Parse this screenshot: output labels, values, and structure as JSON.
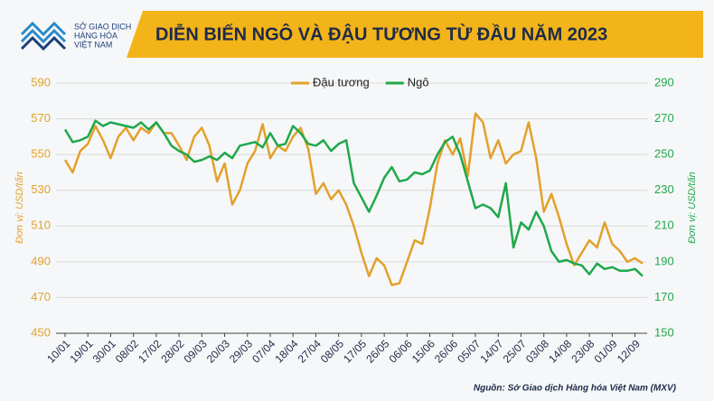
{
  "logo": {
    "lines": [
      "SỞ GIAO DỊCH",
      "HÀNG HÓA",
      "VIỆT NAM"
    ]
  },
  "chart_data": {
    "type": "line",
    "title": "DIỄN BIẾN NGÔ VÀ ĐẬU TƯƠNG TỪ ĐẦU NĂM 2023",
    "y_label": "Đơn vị: USD/tấn",
    "y2_label": "Đơn vị: USD/tấn",
    "source": "Nguồn: Sở Giao dịch Hàng hóa Việt Nam (MXV)",
    "categories": [
      "10/01",
      null,
      null,
      "19/01",
      null,
      null,
      "30/01",
      null,
      null,
      "08/02",
      null,
      null,
      "17/02",
      null,
      null,
      "28/02",
      null,
      null,
      "09/03",
      null,
      null,
      "20/03",
      null,
      null,
      "29/03",
      null,
      null,
      "07/04",
      null,
      null,
      "18/04",
      null,
      null,
      "27/04",
      null,
      null,
      "08/05",
      null,
      null,
      "17/05",
      null,
      null,
      "26/05",
      null,
      null,
      "06/06",
      null,
      null,
      "15/06",
      null,
      null,
      "26/06",
      null,
      null,
      "05/07",
      null,
      null,
      "14/07",
      null,
      null,
      "25/07",
      null,
      null,
      "03/08",
      null,
      null,
      "14/08",
      null,
      null,
      "23/08",
      null,
      null,
      "01/09",
      null,
      null,
      "12/09",
      null
    ],
    "series": [
      {
        "name": "Đậu tương",
        "color": "#e2a12b",
        "axis": "y",
        "values": [
          547,
          540,
          552,
          556,
          566,
          558,
          548,
          560,
          565,
          558,
          565,
          562,
          568,
          562,
          562,
          555,
          547,
          560,
          565,
          555,
          535,
          545,
          522,
          530,
          545,
          552,
          567,
          548,
          555,
          552,
          560,
          565,
          553,
          528,
          534,
          525,
          530,
          522,
          510,
          495,
          482,
          492,
          488,
          477,
          478,
          490,
          502,
          500,
          520,
          545,
          558,
          550,
          559,
          538,
          573,
          568,
          548,
          558,
          545,
          550,
          552,
          568,
          548,
          518,
          528,
          515,
          500,
          488,
          495,
          502,
          498,
          512,
          500,
          496,
          490,
          492,
          489
        ]
      },
      {
        "name": "Ngô",
        "color": "#1fa84b",
        "axis": "y2",
        "values": [
          264,
          257,
          258,
          260,
          269,
          266,
          268,
          267,
          266,
          265,
          268,
          264,
          268,
          262,
          255,
          252,
          250,
          246,
          247,
          249,
          247,
          251,
          248,
          255,
          256,
          257,
          254,
          262,
          255,
          256,
          266,
          262,
          256,
          255,
          258,
          252,
          256,
          258,
          234,
          226,
          218,
          227,
          237,
          243,
          235,
          236,
          240,
          239,
          241,
          250,
          257,
          260,
          250,
          235,
          220,
          222,
          220,
          215,
          234,
          198,
          212,
          208,
          218,
          210,
          196,
          190,
          191,
          189,
          188,
          183,
          189,
          186,
          187,
          185,
          185,
          186,
          182
        ]
      }
    ],
    "ylim": [
      450,
      590
    ],
    "yticks": [
      450,
      470,
      490,
      510,
      530,
      550,
      570,
      590
    ],
    "y2lim": [
      150,
      290
    ],
    "y2ticks": [
      150,
      170,
      190,
      210,
      230,
      250,
      270,
      290
    ],
    "grid": true,
    "legend": "top"
  }
}
